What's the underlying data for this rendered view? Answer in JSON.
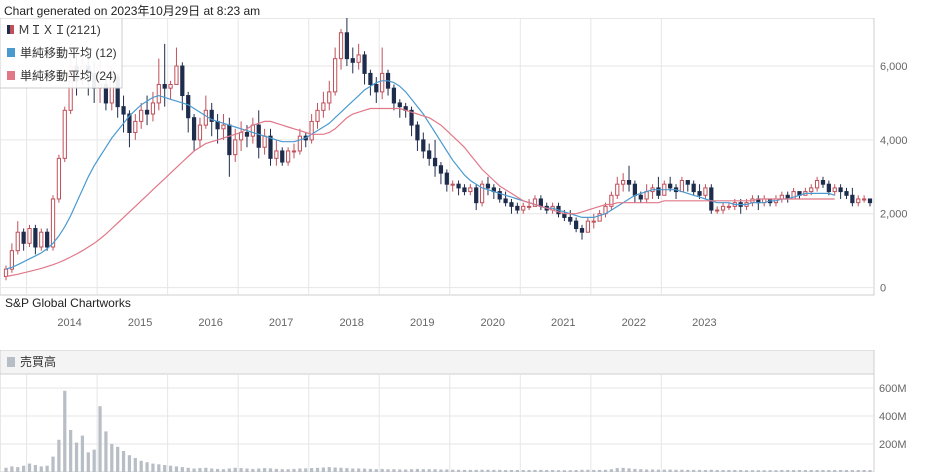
{
  "generated": "Chart generated on 2023年10月29日 at 8:23 am",
  "credit": "S&P Global Chartworks",
  "colors": {
    "up": "#e8a0a8",
    "down": "#1f2d4d",
    "ma12": "#4a9ad0",
    "ma24": "#e07888",
    "volume": "#b8bec6",
    "grid": "#e6e6e6"
  },
  "chart_data": [
    {
      "type": "candlestick",
      "legend": [
        {
          "label": "ＭＩＸＩ(2121)",
          "color": "#c0505a"
        },
        {
          "label": "単純移動平均 (12)",
          "color": "#4a9ad0"
        },
        {
          "label": "単純移動平均 (24)",
          "color": "#e07888"
        }
      ],
      "x_ticks": [
        "2014",
        "2015",
        "2016",
        "2017",
        "2018",
        "2019",
        "2020",
        "2021",
        "2022",
        "2023"
      ],
      "y_ticks": [
        "6,000",
        "4,000",
        "2,000",
        "0"
      ],
      "ylim": [
        -200,
        7300
      ],
      "candles": [
        [
          300,
          500,
          200,
          600
        ],
        [
          500,
          1000,
          400,
          1200
        ],
        [
          1000,
          1500,
          900,
          1800
        ],
        [
          1500,
          1200,
          1000,
          1600
        ],
        [
          1200,
          1600,
          1100,
          1700
        ],
        [
          1600,
          1100,
          900,
          1700
        ],
        [
          1100,
          1500,
          1000,
          1600
        ],
        [
          1500,
          1100,
          1000,
          1600
        ],
        [
          1100,
          2400,
          1000,
          2500
        ],
        [
          2400,
          3500,
          2300,
          3600
        ],
        [
          3500,
          4800,
          3400,
          4900
        ],
        [
          4800,
          6000,
          4700,
          6400
        ],
        [
          6000,
          5600,
          5200,
          6300
        ],
        [
          5600,
          6000,
          5500,
          6300
        ],
        [
          6000,
          5800,
          5200,
          6500
        ],
        [
          5800,
          5400,
          5000,
          6100
        ],
        [
          5400,
          5500,
          5000,
          6200
        ],
        [
          5500,
          5000,
          4800,
          5800
        ],
        [
          5000,
          5700,
          4800,
          6000
        ],
        [
          5700,
          4900,
          4600,
          5800
        ],
        [
          4900,
          4700,
          4200,
          5200
        ],
        [
          4700,
          4200,
          3800,
          4800
        ],
        [
          4200,
          4500,
          4000,
          4700
        ],
        [
          4500,
          4800,
          4300,
          5000
        ],
        [
          4800,
          4700,
          4400,
          5200
        ],
        [
          4700,
          5000,
          4500,
          5300
        ],
        [
          5000,
          5500,
          4800,
          6200
        ],
        [
          5500,
          5400,
          4900,
          6600
        ],
        [
          5400,
          5500,
          5100,
          5600
        ],
        [
          5500,
          6000,
          5500,
          6500
        ],
        [
          6000,
          5200,
          4800,
          6100
        ],
        [
          5200,
          4600,
          4200,
          5300
        ],
        [
          4600,
          4000,
          3700,
          4700
        ],
        [
          4000,
          4400,
          3800,
          4600
        ],
        [
          4400,
          4800,
          4300,
          5200
        ],
        [
          4800,
          4500,
          4100,
          5000
        ],
        [
          4500,
          4300,
          3900,
          4700
        ],
        [
          4300,
          4400,
          4000,
          4700
        ],
        [
          4400,
          3600,
          3000,
          4600
        ],
        [
          3600,
          4000,
          3400,
          4300
        ],
        [
          4000,
          4200,
          3700,
          4500
        ],
        [
          4200,
          4100,
          3800,
          4400
        ],
        [
          4100,
          4400,
          3900,
          4600
        ],
        [
          4400,
          3800,
          3500,
          4800
        ],
        [
          3800,
          4100,
          3600,
          4300
        ],
        [
          4100,
          3500,
          3300,
          4300
        ],
        [
          3500,
          3700,
          3300,
          4000
        ],
        [
          3700,
          3400,
          3300,
          3800
        ],
        [
          3400,
          3700,
          3300,
          3800
        ],
        [
          3700,
          3700,
          3500,
          3900
        ],
        [
          3700,
          4100,
          3600,
          4300
        ],
        [
          4100,
          4000,
          3800,
          4200
        ],
        [
          4000,
          4500,
          3900,
          4700
        ],
        [
          4500,
          4800,
          4300,
          5000
        ],
        [
          4800,
          5000,
          4600,
          5300
        ],
        [
          5000,
          5300,
          4800,
          5600
        ],
        [
          5300,
          6200,
          5200,
          6500
        ],
        [
          6200,
          6900,
          5900,
          7000
        ],
        [
          6900,
          6200,
          6000,
          7300
        ],
        [
          6200,
          6100,
          5800,
          6500
        ],
        [
          6100,
          6300,
          5900,
          6600
        ],
        [
          6300,
          5800,
          5500,
          6400
        ],
        [
          5800,
          5500,
          5200,
          5900
        ],
        [
          5500,
          5300,
          5000,
          5700
        ],
        [
          5300,
          5800,
          5100,
          6500
        ],
        [
          5800,
          5400,
          5200,
          5900
        ],
        [
          5400,
          5000,
          4800,
          5500
        ],
        [
          5000,
          4900,
          4600,
          5100
        ],
        [
          4900,
          4800,
          4600,
          5000
        ],
        [
          4800,
          4400,
          4100,
          4900
        ],
        [
          4400,
          4000,
          3700,
          4500
        ],
        [
          4000,
          3700,
          3500,
          4200
        ],
        [
          3700,
          3500,
          3300,
          3900
        ],
        [
          3500,
          3300,
          3000,
          4000
        ],
        [
          3300,
          3100,
          2800,
          3400
        ],
        [
          3100,
          2800,
          2600,
          3200
        ],
        [
          2800,
          2800,
          2600,
          2900
        ],
        [
          2800,
          2700,
          2500,
          2900
        ],
        [
          2700,
          2600,
          2500,
          2800
        ],
        [
          2600,
          2700,
          2500,
          2800
        ],
        [
          2700,
          2300,
          2100,
          2800
        ],
        [
          2300,
          2800,
          2200,
          2900
        ],
        [
          2800,
          2700,
          2500,
          3000
        ],
        [
          2700,
          2600,
          2400,
          2800
        ],
        [
          2600,
          2400,
          2300,
          2700
        ],
        [
          2400,
          2300,
          2200,
          2600
        ],
        [
          2300,
          2200,
          2000,
          2400
        ],
        [
          2200,
          2100,
          2000,
          2300
        ],
        [
          2100,
          2200,
          2000,
          2300
        ],
        [
          2200,
          2200,
          2100,
          2400
        ],
        [
          2200,
          2400,
          2200,
          2500
        ],
        [
          2400,
          2200,
          2100,
          2500
        ],
        [
          2200,
          2100,
          2000,
          2300
        ],
        [
          2100,
          2200,
          2000,
          2300
        ],
        [
          2200,
          2000,
          1900,
          2300
        ],
        [
          2000,
          1900,
          1800,
          2100
        ],
        [
          1900,
          1800,
          1700,
          2100
        ],
        [
          1800,
          1600,
          1500,
          1900
        ],
        [
          1600,
          1500,
          1300,
          1700
        ],
        [
          1500,
          1800,
          1500,
          1900
        ],
        [
          1800,
          1800,
          1600,
          2000
        ],
        [
          1800,
          2000,
          1800,
          2100
        ],
        [
          2000,
          2200,
          1900,
          2300
        ],
        [
          2200,
          2500,
          2100,
          2600
        ],
        [
          2500,
          2800,
          2400,
          3000
        ],
        [
          2800,
          2900,
          2600,
          3100
        ],
        [
          2900,
          2800,
          2600,
          3300
        ],
        [
          2800,
          2500,
          2300,
          2900
        ],
        [
          2500,
          2400,
          2300,
          2600
        ],
        [
          2400,
          2600,
          2300,
          2800
        ],
        [
          2600,
          2700,
          2400,
          2800
        ],
        [
          2700,
          2500,
          2400,
          3000
        ],
        [
          2500,
          2800,
          2500,
          2900
        ],
        [
          2800,
          2700,
          2600,
          3000
        ],
        [
          2700,
          2600,
          2400,
          2800
        ],
        [
          2600,
          2900,
          2600,
          3000
        ],
        [
          2900,
          2800,
          2600,
          2900
        ],
        [
          2800,
          2600,
          2500,
          2900
        ],
        [
          2600,
          2500,
          2400,
          2800
        ],
        [
          2500,
          2700,
          2400,
          2800
        ],
        [
          2700,
          2100,
          2000,
          2800
        ],
        [
          2100,
          2100,
          2000,
          2200
        ],
        [
          2100,
          2200,
          2000,
          2300
        ],
        [
          2200,
          2200,
          2100,
          2300
        ],
        [
          2200,
          2300,
          2100,
          2400
        ],
        [
          2300,
          2200,
          2000,
          2400
        ],
        [
          2200,
          2300,
          2100,
          2400
        ],
        [
          2300,
          2400,
          2200,
          2500
        ],
        [
          2400,
          2300,
          2100,
          2500
        ],
        [
          2300,
          2400,
          2200,
          2500
        ],
        [
          2400,
          2300,
          2200,
          2400
        ],
        [
          2300,
          2400,
          2200,
          2500
        ],
        [
          2400,
          2500,
          2300,
          2600
        ],
        [
          2500,
          2400,
          2300,
          2600
        ],
        [
          2400,
          2600,
          2400,
          2700
        ],
        [
          2600,
          2500,
          2400,
          2600
        ],
        [
          2500,
          2600,
          2500,
          2700
        ],
        [
          2600,
          2700,
          2500,
          2800
        ],
        [
          2700,
          2900,
          2600,
          3000
        ],
        [
          2900,
          2800,
          2700,
          3000
        ],
        [
          2800,
          2600,
          2500,
          2900
        ],
        [
          2600,
          2700,
          2500,
          2800
        ],
        [
          2700,
          2600,
          2400,
          2800
        ],
        [
          2600,
          2500,
          2400,
          2700
        ],
        [
          2500,
          2300,
          2200,
          2700
        ],
        [
          2300,
          2400,
          2200,
          2500
        ],
        [
          2400,
          2400,
          2300,
          2500
        ],
        [
          2400,
          2300,
          2200,
          2400
        ]
      ],
      "sma12": [
        500,
        550,
        620,
        700,
        780,
        860,
        940,
        1050,
        1200,
        1400,
        1650,
        1950,
        2300,
        2650,
        3000,
        3300,
        3550,
        3800,
        4050,
        4250,
        4450,
        4650,
        4800,
        4950,
        5050,
        5150,
        5200,
        5150,
        5100,
        5050,
        5000,
        4950,
        4850,
        4750,
        4650,
        4550,
        4500,
        4450,
        4400,
        4350,
        4300,
        4250,
        4200,
        4150,
        4100,
        4050,
        4000,
        3950,
        3950,
        3950,
        4000,
        4050,
        4150,
        4250,
        4350,
        4450,
        4600,
        4750,
        4900,
        5050,
        5200,
        5350,
        5450,
        5550,
        5600,
        5600,
        5550,
        5450,
        5300,
        5100,
        4900,
        4700,
        4450,
        4200,
        3950,
        3700,
        3450,
        3250,
        3050,
        2900,
        2800,
        2700,
        2650,
        2600,
        2550,
        2500,
        2450,
        2400,
        2350,
        2300,
        2250,
        2200,
        2150,
        2150,
        2100,
        2050,
        2000,
        1950,
        1900,
        1900,
        1900,
        1950,
        2000,
        2100,
        2200,
        2300,
        2400,
        2500,
        2550,
        2600,
        2650,
        2650,
        2650,
        2650,
        2650,
        2600,
        2550,
        2500,
        2450,
        2400,
        2350,
        2300,
        2300,
        2300,
        2250,
        2250,
        2250,
        2300,
        2300,
        2300,
        2350,
        2350,
        2400,
        2400,
        2450,
        2500,
        2550,
        2550,
        2550,
        2550,
        2550,
        2500
      ],
      "sma24": [
        300,
        330,
        360,
        400,
        440,
        480,
        520,
        570,
        620,
        680,
        750,
        830,
        910,
        1000,
        1100,
        1200,
        1320,
        1450,
        1600,
        1750,
        1900,
        2050,
        2200,
        2350,
        2500,
        2650,
        2800,
        2950,
        3100,
        3250,
        3400,
        3550,
        3700,
        3800,
        3900,
        3950,
        4000,
        4050,
        4100,
        4150,
        4200,
        4300,
        4400,
        4450,
        4500,
        4500,
        4450,
        4400,
        4350,
        4300,
        4250,
        4200,
        4150,
        4150,
        4150,
        4200,
        4300,
        4450,
        4600,
        4700,
        4750,
        4800,
        4850,
        4850,
        4850,
        4850,
        4850,
        4850,
        4800,
        4750,
        4700,
        4650,
        4600,
        4500,
        4400,
        4250,
        4100,
        3950,
        3800,
        3600,
        3400,
        3200,
        3050,
        2900,
        2750,
        2650,
        2550,
        2450,
        2350,
        2300,
        2250,
        2200,
        2150,
        2100,
        2050,
        2000,
        2000,
        2000,
        2050,
        2100,
        2150,
        2200,
        2250,
        2250,
        2300,
        2300,
        2300,
        2300,
        2300,
        2300,
        2300,
        2300,
        2350,
        2350,
        2350,
        2350,
        2350,
        2350,
        2350,
        2350,
        2350,
        2350,
        2350,
        2350,
        2350,
        2350,
        2350,
        2350,
        2400,
        2400,
        2400,
        2400,
        2400,
        2400,
        2400,
        2400,
        2400,
        2400,
        2400,
        2400,
        2400,
        2400
      ]
    },
    {
      "type": "bar",
      "legend": [
        {
          "label": "売買高",
          "color": "#b8bec6"
        }
      ],
      "y_ticks": [
        "600M",
        "400M",
        "200M"
      ],
      "ylim": [
        0,
        700
      ],
      "values": [
        30,
        40,
        35,
        45,
        60,
        50,
        40,
        45,
        110,
        230,
        580,
        300,
        210,
        260,
        140,
        160,
        470,
        290,
        200,
        180,
        150,
        120,
        100,
        80,
        70,
        60,
        55,
        50,
        45,
        40,
        35,
        30,
        25,
        28,
        30,
        25,
        22,
        20,
        25,
        30,
        28,
        25,
        22,
        25,
        28,
        26,
        22,
        20,
        20,
        22,
        25,
        26,
        28,
        30,
        32,
        35,
        32,
        30,
        28,
        25,
        25,
        24,
        22,
        20,
        22,
        20,
        20,
        18,
        18,
        20,
        22,
        20,
        20,
        20,
        18,
        18,
        16,
        16,
        15,
        15,
        15,
        16,
        16,
        15,
        15,
        14,
        14,
        14,
        14,
        14,
        15,
        15,
        14,
        14,
        13,
        13,
        13,
        14,
        16,
        16,
        15,
        15,
        16,
        20,
        28,
        30,
        26,
        22,
        20,
        18,
        18,
        17,
        17,
        17,
        16,
        16,
        15,
        15,
        15,
        14,
        16,
        14,
        14,
        14,
        14,
        14,
        13,
        13,
        13,
        13,
        13,
        13,
        14,
        14,
        14,
        14,
        14,
        14,
        14,
        14,
        14,
        14,
        14,
        14,
        14,
        14,
        14,
        14
      ]
    }
  ]
}
